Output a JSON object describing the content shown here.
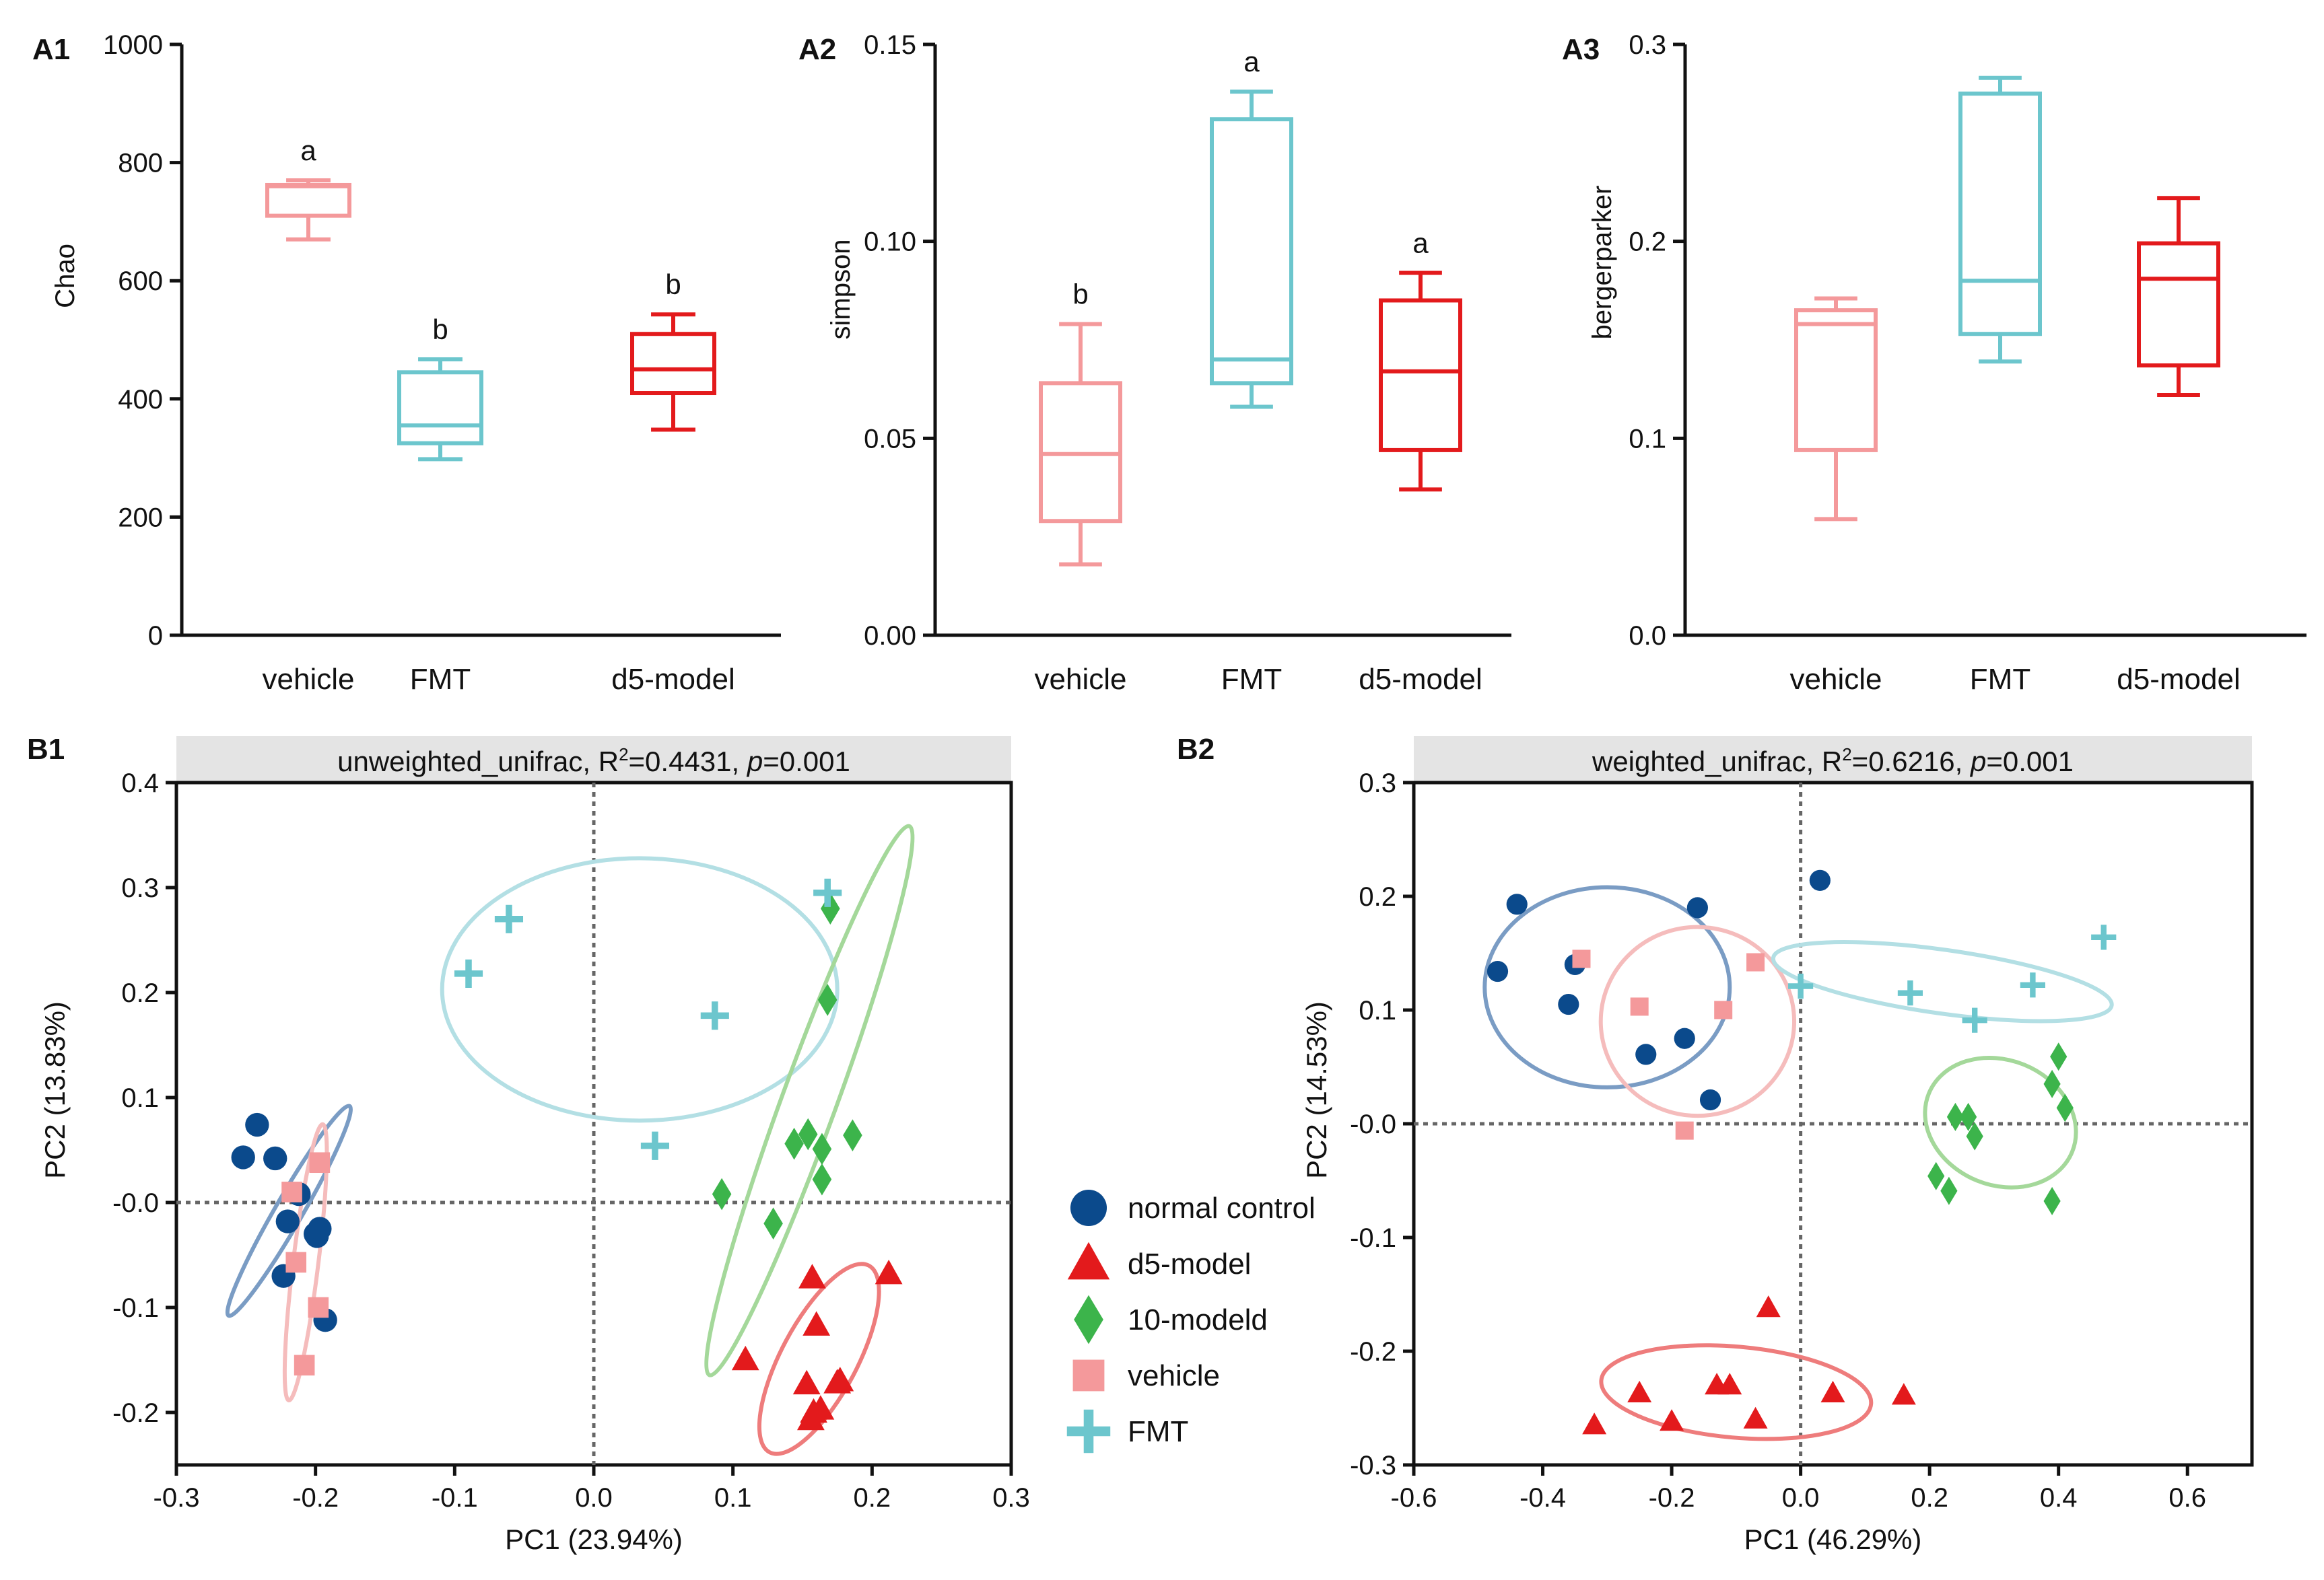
{
  "colors": {
    "vehicle": "#f4999b",
    "FMT": "#6cc6cd",
    "d5": "#e31a1c",
    "normal": "#0b4a8c",
    "m10": "#3cb44b",
    "normal_ellipse": "#7a9cc4",
    "vehicle_ellipse": "#f5bcbc",
    "fmt_ellipse": "#b3dfe4",
    "m10_ellipse": "#a4d89a",
    "d5_ellipse": "#ee7c7c",
    "strip": "#e4e4e4"
  },
  "chart_data": [
    {
      "id": "A1",
      "panel_label": "A1",
      "type": "box",
      "ylabel": "Chao",
      "ylim": [
        0,
        1000
      ],
      "yticks": [
        0,
        200,
        400,
        600,
        800,
        1000
      ],
      "ytick_labels": [
        "0",
        "200",
        "400",
        "600",
        "800",
        "1000"
      ],
      "categories": [
        "vehicle",
        "FMT",
        "d5-model"
      ],
      "groups": [
        {
          "name": "vehicle",
          "color": "vehicle",
          "min": 670,
          "q1": 710,
          "median": 760,
          "q3": 762,
          "max": 770,
          "label": "a"
        },
        {
          "name": "FMT",
          "color": "FMT",
          "min": 298,
          "q1": 325,
          "median": 355,
          "q3": 445,
          "max": 467,
          "label": "b"
        },
        {
          "name": "d5-model",
          "color": "d5",
          "min": 348,
          "q1": 410,
          "median": 450,
          "q3": 510,
          "max": 543,
          "label": "b"
        }
      ]
    },
    {
      "id": "A2",
      "panel_label": "A2",
      "type": "box",
      "ylabel": "simpson",
      "ylim": [
        0,
        0.15
      ],
      "yticks": [
        0,
        0.05,
        0.1,
        0.15
      ],
      "ytick_labels": [
        "0.00",
        "0.05",
        "0.10",
        "0.15"
      ],
      "categories": [
        "vehicle",
        "FMT",
        "d5-model"
      ],
      "groups": [
        {
          "name": "vehicle",
          "color": "vehicle",
          "min": 0.018,
          "q1": 0.029,
          "median": 0.046,
          "q3": 0.064,
          "max": 0.079,
          "label": "b"
        },
        {
          "name": "FMT",
          "color": "FMT",
          "min": 0.058,
          "q1": 0.064,
          "median": 0.07,
          "q3": 0.131,
          "max": 0.138,
          "label": "a"
        },
        {
          "name": "d5-model",
          "color": "d5",
          "min": 0.037,
          "q1": 0.047,
          "median": 0.067,
          "q3": 0.085,
          "max": 0.092,
          "label": "a"
        }
      ]
    },
    {
      "id": "A3",
      "panel_label": "A3",
      "type": "box",
      "ylabel": "bergerparker",
      "ylim": [
        0,
        0.3
      ],
      "yticks": [
        0,
        0.1,
        0.2,
        0.3
      ],
      "ytick_labels": [
        "0.0",
        "0.1",
        "0.2",
        "0.3"
      ],
      "categories": [
        "vehicle",
        "FMT",
        "d5-model"
      ],
      "groups": [
        {
          "name": "vehicle",
          "color": "vehicle",
          "min": 0.059,
          "q1": 0.094,
          "median": 0.158,
          "q3": 0.165,
          "max": 0.171,
          "label": ""
        },
        {
          "name": "FMT",
          "color": "FMT",
          "min": 0.139,
          "q1": 0.153,
          "median": 0.18,
          "q3": 0.275,
          "max": 0.283,
          "label": ""
        },
        {
          "name": "d5-model",
          "color": "d5",
          "min": 0.122,
          "q1": 0.137,
          "median": 0.181,
          "q3": 0.199,
          "max": 0.222,
          "label": ""
        }
      ]
    },
    {
      "id": "B1",
      "panel_label": "B1",
      "type": "scatter",
      "title_prefix": "unweighted_unifrac, R",
      "title_sup": "2",
      "title_mid": "=0.4431, ",
      "title_p": "p",
      "title_suffix": "=0.001",
      "xlabel": "PC1 (23.94%)",
      "ylabel": "PC2 (13.83%)",
      "xlim": [
        -0.3,
        0.3
      ],
      "ylim": [
        -0.25,
        0.4
      ],
      "xticks": [
        -0.3,
        -0.2,
        -0.1,
        0,
        0.1,
        0.2,
        0.3
      ],
      "xtick_labels": [
        "-0.3",
        "-0.2",
        "-0.1",
        "0.0",
        "0.1",
        "0.2",
        "0.3"
      ],
      "yticks": [
        -0.2,
        -0.1,
        0,
        0.1,
        0.2,
        0.3,
        0.4
      ],
      "ytick_labels": [
        "-0.2",
        "-0.1",
        "-0.0",
        "0.1",
        "0.2",
        "0.3",
        "0.4"
      ],
      "series": [
        {
          "name": "normal control",
          "color": "normal",
          "marker": "circle",
          "x": [
            -0.252,
            -0.242,
            -0.229,
            -0.22,
            -0.212,
            -0.2,
            -0.199,
            -0.197,
            -0.223,
            -0.193
          ],
          "y": [
            0.043,
            0.074,
            0.042,
            -0.018,
            0.008,
            -0.03,
            -0.032,
            -0.025,
            -0.07,
            -0.112
          ]
        },
        {
          "name": "d5-model",
          "color": "d5",
          "marker": "triangle",
          "x": [
            0.157,
            0.16,
            0.212,
            0.109,
            0.153,
            0.163,
            0.158,
            0.175,
            0.177,
            0.156
          ],
          "y": [
            -0.072,
            -0.117,
            -0.068,
            -0.15,
            -0.173,
            -0.197,
            -0.2,
            -0.172,
            -0.17,
            -0.207
          ]
        },
        {
          "name": "10-modeld",
          "color": "m10",
          "marker": "diamond",
          "x": [
            0.17,
            0.168,
            0.144,
            0.154,
            0.164,
            0.186,
            0.164,
            0.092,
            0.129
          ],
          "y": [
            0.28,
            0.193,
            0.056,
            0.065,
            0.051,
            0.064,
            0.022,
            0.008,
            -0.02
          ]
        },
        {
          "name": "vehicle",
          "color": "vehicle",
          "marker": "square",
          "x": [
            -0.197,
            -0.217,
            -0.214,
            -0.198,
            -0.208
          ],
          "y": [
            0.038,
            0.01,
            -0.057,
            -0.1,
            -0.155
          ]
        },
        {
          "name": "FMT",
          "color": "FMT",
          "marker": "plus",
          "x": [
            -0.09,
            -0.061,
            0.087,
            0.168,
            0.044
          ],
          "y": [
            0.218,
            0.27,
            0.178,
            0.295,
            0.054
          ]
        }
      ],
      "ellipses": [
        {
          "group": "FMT",
          "color": "fmt_ellipse",
          "cx": 0.033,
          "cy": 0.203,
          "rx": 0.142,
          "ry": 0.125,
          "angle": 0
        },
        {
          "group": "10-modeld",
          "color": "m10_ellipse",
          "cx": 0.155,
          "cy": 0.097,
          "rx": 0.21,
          "ry": 0.026,
          "angle": -70
        },
        {
          "group": "d5-model",
          "color": "d5_ellipse",
          "cx": 0.162,
          "cy": -0.149,
          "rx": 0.076,
          "ry": 0.036,
          "angle": -62
        },
        {
          "group": "normal control",
          "color": "normal_ellipse",
          "cx": -0.219,
          "cy": -0.008,
          "rx": 0.087,
          "ry": 0.013,
          "angle": -60
        },
        {
          "group": "vehicle",
          "color": "vehicle_ellipse",
          "cx": -0.207,
          "cy": -0.057,
          "rx": 0.1,
          "ry": 0.012,
          "angle": -83
        }
      ]
    },
    {
      "id": "B2",
      "panel_label": "B2",
      "type": "scatter",
      "title_prefix": "weighted_unifrac, R",
      "title_sup": "2",
      "title_mid": "=0.6216, ",
      "title_p": "p",
      "title_suffix": "=0.001",
      "xlabel": "PC1 (46.29%)",
      "ylabel": "PC2 (14.53%)",
      "xlim": [
        -0.6,
        0.7
      ],
      "ylim": [
        -0.3,
        0.3
      ],
      "xticks": [
        -0.6,
        -0.4,
        -0.2,
        0,
        0.2,
        0.4,
        0.6
      ],
      "xtick_labels": [
        "-0.6",
        "-0.4",
        "-0.2",
        "0.0",
        "0.2",
        "0.4",
        "0.6"
      ],
      "yticks": [
        -0.3,
        -0.2,
        -0.1,
        0,
        0.1,
        0.2,
        0.3
      ],
      "ytick_labels": [
        "-0.3",
        "-0.2",
        "-0.1",
        "-0.0",
        "0.1",
        "0.2",
        "0.3"
      ],
      "series": [
        {
          "name": "normal control",
          "color": "normal",
          "marker": "circle",
          "x": [
            -0.44,
            -0.47,
            -0.35,
            -0.36,
            -0.24,
            -0.18,
            -0.16,
            -0.14,
            0.03
          ],
          "y": [
            0.193,
            0.134,
            0.14,
            0.105,
            0.061,
            0.075,
            0.19,
            0.021,
            0.214
          ]
        },
        {
          "name": "d5-model",
          "color": "d5",
          "marker": "triangle",
          "x": [
            -0.05,
            -0.25,
            -0.32,
            -0.2,
            -0.13,
            -0.11,
            -0.07,
            0.05,
            0.16
          ],
          "y": [
            -0.162,
            -0.237,
            -0.265,
            -0.262,
            -0.23,
            -0.23,
            -0.26,
            -0.237,
            -0.239
          ]
        },
        {
          "name": "10-modeld",
          "color": "m10",
          "marker": "diamond",
          "x": [
            0.4,
            0.39,
            0.41,
            0.24,
            0.26,
            0.27,
            0.21,
            0.23,
            0.39
          ],
          "y": [
            0.059,
            0.035,
            0.014,
            0.006,
            0.006,
            -0.011,
            -0.046,
            -0.059,
            -0.068
          ]
        },
        {
          "name": "vehicle",
          "color": "vehicle",
          "marker": "square",
          "x": [
            -0.34,
            -0.07,
            -0.25,
            -0.12,
            -0.18
          ],
          "y": [
            0.145,
            0.142,
            0.103,
            0.1,
            -0.006
          ]
        },
        {
          "name": "FMT",
          "color": "FMT",
          "marker": "plus",
          "x": [
            0.0,
            0.17,
            0.36,
            0.47,
            0.27
          ],
          "y": [
            0.121,
            0.115,
            0.122,
            0.164,
            0.091
          ]
        }
      ],
      "ellipses": [
        {
          "group": "normal control",
          "color": "normal_ellipse",
          "cx": -0.3,
          "cy": 0.12,
          "rx": 0.19,
          "ry": 0.088,
          "angle": 0
        },
        {
          "group": "vehicle",
          "color": "vehicle_ellipse",
          "cx": -0.16,
          "cy": 0.09,
          "rx": 0.15,
          "ry": 0.083,
          "angle": 0
        },
        {
          "group": "FMT",
          "color": "fmt_ellipse",
          "cx": 0.22,
          "cy": 0.125,
          "rx": 0.265,
          "ry": 0.028,
          "angle": 8
        },
        {
          "group": "10-modeld",
          "color": "m10_ellipse",
          "cx": 0.31,
          "cy": 0.001,
          "rx": 0.12,
          "ry": 0.055,
          "angle": 22
        },
        {
          "group": "d5-model",
          "color": "d5_ellipse",
          "cx": -0.1,
          "cy": -0.236,
          "rx": 0.21,
          "ry": 0.04,
          "angle": 5
        }
      ]
    }
  ],
  "legend": {
    "items": [
      {
        "label": "normal control",
        "color": "normal",
        "marker": "circle"
      },
      {
        "label": "d5-model",
        "color": "d5",
        "marker": "triangle"
      },
      {
        "label": "10-modeld",
        "color": "m10",
        "marker": "diamond"
      },
      {
        "label": "vehicle",
        "color": "vehicle",
        "marker": "square"
      },
      {
        "label": "FMT",
        "color": "FMT",
        "marker": "plus"
      }
    ]
  }
}
